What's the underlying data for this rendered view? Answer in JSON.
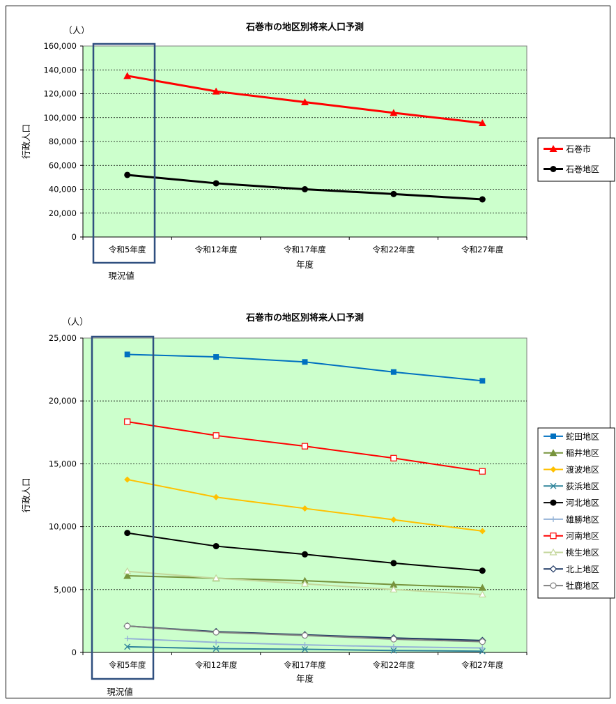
{
  "chart_data": [
    {
      "type": "line",
      "title": "石巻市の地区別将来人口予測",
      "unit_label": "（人）",
      "xlabel": "年度",
      "ylabel": "行政人口",
      "categories": [
        "令和5年度",
        "令和12年度",
        "令和17年度",
        "令和22年度",
        "令和27年度"
      ],
      "ylim": [
        0,
        160000
      ],
      "yticks": [
        0,
        20000,
        40000,
        60000,
        80000,
        100000,
        120000,
        140000,
        160000
      ],
      "ytick_labels": [
        "0",
        "20,000",
        "40,000",
        "60,000",
        "80,000",
        "100,000",
        "120,000",
        "140,000",
        "160,000"
      ],
      "grid": true,
      "legend": "right",
      "highlight_label": "現況値",
      "series": [
        {
          "name": "石巻市",
          "color": "#ff0000",
          "marker": "triangle",
          "values": [
            135000,
            122000,
            113000,
            104000,
            95500
          ]
        },
        {
          "name": "石巻地区",
          "color": "#000000",
          "marker": "circle",
          "values": [
            52000,
            45000,
            40000,
            36000,
            31500
          ]
        }
      ]
    },
    {
      "type": "line",
      "title": "石巻市の地区別将来人口予測",
      "unit_label": "（人）",
      "xlabel": "年度",
      "ylabel": "行政人口",
      "categories": [
        "令和5年度",
        "令和12年度",
        "令和17年度",
        "令和22年度",
        "令和27年度"
      ],
      "ylim": [
        0,
        25000
      ],
      "yticks": [
        0,
        5000,
        10000,
        15000,
        20000,
        25000
      ],
      "ytick_labels": [
        "0",
        "5,000",
        "10,000",
        "15,000",
        "20,000",
        "25,000"
      ],
      "grid": true,
      "legend": "right",
      "highlight_label": "現況値",
      "series": [
        {
          "name": "蛇田地区",
          "color": "#0070c0",
          "marker": "square",
          "values": [
            23700,
            23500,
            23100,
            22300,
            21600
          ]
        },
        {
          "name": "稲井地区",
          "color": "#77933c",
          "marker": "triangle",
          "values": [
            6100,
            5900,
            5700,
            5400,
            5150
          ]
        },
        {
          "name": "渡波地区",
          "color": "#ffc000",
          "marker": "diamond",
          "values": [
            13750,
            12350,
            11450,
            10550,
            9650
          ]
        },
        {
          "name": "荻浜地区",
          "color": "#31859c",
          "marker": "x",
          "values": [
            450,
            300,
            250,
            150,
            100
          ]
        },
        {
          "name": "河北地区",
          "color": "#000000",
          "marker": "circle",
          "values": [
            9500,
            8450,
            7800,
            7100,
            6500
          ]
        },
        {
          "name": "雄勝地区",
          "color": "#95b3d7",
          "marker": "plus",
          "values": [
            1100,
            800,
            600,
            450,
            350
          ]
        },
        {
          "name": "河南地区",
          "color": "#ff0000",
          "marker": "square-open",
          "values": [
            18350,
            17250,
            16400,
            15450,
            14400
          ]
        },
        {
          "name": "桃生地区",
          "color": "#c3d69b",
          "marker": "triangle-open",
          "values": [
            6450,
            5900,
            5450,
            5000,
            4600
          ]
        },
        {
          "name": "北上地区",
          "color": "#1f3864",
          "marker": "diamond-open",
          "values": [
            2100,
            1650,
            1400,
            1150,
            950
          ]
        },
        {
          "name": "牡鹿地区",
          "color": "#808080",
          "marker": "circle-open",
          "values": [
            2100,
            1600,
            1350,
            1050,
            850
          ]
        }
      ]
    }
  ]
}
